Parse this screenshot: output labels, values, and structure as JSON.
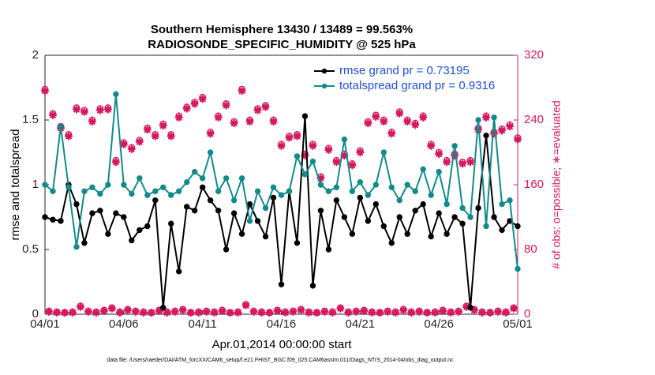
{
  "chart_data": {
    "type": "line",
    "title": "Southern Hemisphere 13430 / 13489 = 99.563%",
    "subtitle": "RADIOSONDE_SPECIFIC_HUMIDITY @ 525 hPa",
    "xlabel": "Apr.01,2014 00:00:00 start",
    "ylabel": "rmse and totalspread",
    "y2label": "# of obs: o=possible; ∗=evaluated",
    "note": "data file: /Users/raeder/DAI/ATM_forcXX/CAM6_setup/f.e21.FHIST_BGC.f09_025.CAM6assim.011/Diags_NTrS_2014-04/obs_diag_output.nc",
    "legend": "upper right",
    "xlim": [
      0,
      30
    ],
    "xticks": [
      {
        "value": 0,
        "label": "04/01"
      },
      {
        "value": 5,
        "label": "04/06"
      },
      {
        "value": 10,
        "label": "04/11"
      },
      {
        "value": 15,
        "label": "04/16"
      },
      {
        "value": 20,
        "label": "04/21"
      },
      {
        "value": 25,
        "label": "04/26"
      },
      {
        "value": 30,
        "label": "05/01"
      }
    ],
    "ylim": [
      0,
      2
    ],
    "yticks": [
      0,
      0.5,
      1,
      1.5,
      2
    ],
    "y2lim": [
      0,
      320
    ],
    "y2ticks": [
      0,
      80,
      160,
      240,
      320
    ],
    "y2color": "#d6175f",
    "x": [
      0,
      0.5,
      1,
      1.5,
      2,
      2.5,
      3,
      3.5,
      4,
      4.5,
      5,
      5.5,
      6,
      6.5,
      7,
      7.5,
      8,
      8.5,
      9,
      9.5,
      10,
      10.5,
      11,
      11.5,
      12,
      12.5,
      13,
      13.5,
      14,
      14.5,
      15,
      15.5,
      16,
      16.5,
      17,
      17.5,
      18,
      18.5,
      19,
      19.5,
      20,
      20.5,
      21,
      21.5,
      22,
      22.5,
      23,
      23.5,
      24,
      24.5,
      25,
      25.5,
      26,
      26.5,
      27,
      27.5,
      28,
      28.5,
      29,
      29.5,
      30
    ],
    "series": [
      {
        "name": "rmse grand pr = 0.73195",
        "color": "#000000",
        "marker": "dot",
        "line": true,
        "values": [
          0.75,
          0.73,
          0.72,
          1.0,
          0.85,
          0.55,
          0.78,
          0.8,
          0.62,
          0.78,
          0.75,
          0.57,
          0.65,
          0.68,
          0.88,
          0.05,
          0.7,
          0.33,
          0.83,
          0.8,
          0.98,
          0.88,
          0.8,
          0.5,
          0.78,
          0.62,
          0.85,
          0.72,
          0.6,
          0.9,
          0.23,
          0.95,
          0.55,
          1.53,
          0.22,
          0.8,
          0.5,
          0.88,
          0.75,
          0.62,
          0.9,
          0.72,
          0.85,
          0.68,
          0.55,
          0.75,
          0.62,
          0.8,
          0.85,
          0.6,
          0.78,
          0.62,
          0.75,
          0.7,
          0.05,
          0.82,
          1.38,
          0.75,
          0.65,
          0.72,
          0.68
        ]
      },
      {
        "name": "totalspread grand pr = 0.9316",
        "color": "#138a8a",
        "marker": "dot",
        "line": true,
        "values": [
          1.0,
          0.95,
          1.45,
          0.98,
          0.52,
          0.95,
          0.98,
          0.93,
          1.0,
          1.7,
          1.0,
          0.93,
          1.05,
          0.92,
          0.95,
          0.98,
          0.92,
          0.95,
          1.02,
          1.1,
          1.05,
          1.25,
          0.95,
          1.05,
          0.88,
          1.05,
          0.72,
          0.95,
          0.82,
          0.98,
          0.92,
          0.95,
          1.22,
          1.08,
          1.18,
          1.0,
          0.95,
          0.98,
          1.35,
          0.95,
          1.02,
          0.92,
          1.0,
          1.25,
          0.98,
          0.88,
          1.0,
          0.95,
          1.12,
          0.92,
          1.1,
          0.85,
          1.3,
          0.82,
          0.75,
          1.5,
          0.68,
          1.52,
          0.85,
          0.88,
          0.35
        ]
      },
      {
        "color": "#d6175f",
        "axis": "y2",
        "marker": "circle",
        "values": [
          278,
          248,
          232,
          222,
          255,
          252,
          240,
          254,
          255,
          190,
          212,
          206,
          215,
          230,
          222,
          235,
          222,
          245,
          256,
          262,
          268,
          225,
          245,
          260,
          238,
          278,
          240,
          254,
          258,
          240,
          210,
          220,
          222,
          198,
          210,
          170,
          205,
          190,
          198,
          186,
          202,
          238,
          246,
          240,
          225,
          250,
          240,
          236,
          245,
          210,
          200,
          190,
          198,
          188,
          190,
          230,
          245,
          225,
          229,
          234,
          218
        ]
      },
      {
        "color": "#d6175f",
        "axis": "y2",
        "marker": "star",
        "values": [
          276,
          246,
          230,
          220,
          253,
          250,
          238,
          252,
          253,
          188,
          210,
          204,
          213,
          228,
          220,
          233,
          220,
          243,
          254,
          260,
          266,
          223,
          243,
          258,
          236,
          276,
          238,
          252,
          256,
          238,
          208,
          218,
          220,
          196,
          208,
          168,
          203,
          188,
          196,
          184,
          200,
          236,
          244,
          238,
          223,
          248,
          238,
          234,
          243,
          208,
          198,
          188,
          196,
          186,
          188,
          228,
          243,
          223,
          227,
          232,
          216
        ]
      },
      {
        "color": "#d6175f",
        "axis": "y2",
        "marker": "circle",
        "x": [
          0.25,
          0.75,
          1.25,
          1.75,
          2.25,
          2.75,
          3.25,
          3.75,
          4.25,
          4.75,
          5.25,
          5.75,
          6.25,
          6.75,
          7.25,
          7.75,
          8.25,
          8.75,
          9.25,
          9.75,
          10.25,
          10.75,
          11.25,
          11.75,
          12.25,
          12.75,
          13.25,
          13.75,
          14.25,
          14.75,
          15.25,
          15.75,
          16.25,
          16.75,
          17.25,
          17.75,
          18.25,
          18.75,
          19.25,
          19.75,
          20.25,
          20.75,
          21.25,
          21.75,
          22.25,
          22.75,
          23.25,
          23.75,
          24.25,
          24.75,
          25.25,
          25.75,
          26.25,
          26.75,
          27.25,
          27.75,
          28.25,
          28.75,
          29.25,
          29.75
        ],
        "values": [
          4,
          3,
          2,
          3,
          10,
          4,
          3,
          5,
          8,
          3,
          6,
          4,
          3,
          2,
          5,
          3,
          4,
          6,
          2,
          3,
          4,
          3,
          5,
          2,
          3,
          12,
          4,
          3,
          2,
          5,
          3,
          4,
          6,
          3,
          2,
          4,
          3,
          8,
          3,
          4,
          5,
          3,
          2,
          4,
          3,
          6,
          3,
          4,
          2,
          3,
          5,
          3,
          4,
          10,
          6,
          3,
          2,
          4,
          3,
          8
        ]
      },
      {
        "color": "#d6175f",
        "axis": "y2",
        "marker": "star",
        "x": [
          0.25,
          0.75,
          1.25,
          1.75,
          2.25,
          2.75,
          3.25,
          3.75,
          4.25,
          4.75,
          5.25,
          5.75,
          6.25,
          6.75,
          7.25,
          7.75,
          8.25,
          8.75,
          9.25,
          9.75,
          10.25,
          10.75,
          11.25,
          11.75,
          12.25,
          12.75,
          13.25,
          13.75,
          14.25,
          14.75,
          15.25,
          15.75,
          16.25,
          16.75,
          17.25,
          17.75,
          18.25,
          18.75,
          19.25,
          19.75,
          20.25,
          20.75,
          21.25,
          21.75,
          22.25,
          22.75,
          23.25,
          23.75,
          24.25,
          24.75,
          25.25,
          25.75,
          26.25,
          26.75,
          27.25,
          27.75,
          28.25,
          28.75,
          29.25,
          29.75
        ],
        "values": [
          3,
          2,
          2,
          2,
          9,
          3,
          2,
          4,
          7,
          2,
          5,
          3,
          2,
          2,
          4,
          2,
          3,
          5,
          2,
          2,
          3,
          2,
          4,
          2,
          2,
          11,
          3,
          2,
          2,
          4,
          2,
          3,
          5,
          2,
          2,
          3,
          2,
          7,
          2,
          3,
          4,
          2,
          2,
          3,
          2,
          5,
          2,
          3,
          2,
          2,
          4,
          2,
          3,
          9,
          5,
          2,
          2,
          3,
          2,
          7
        ]
      }
    ]
  }
}
